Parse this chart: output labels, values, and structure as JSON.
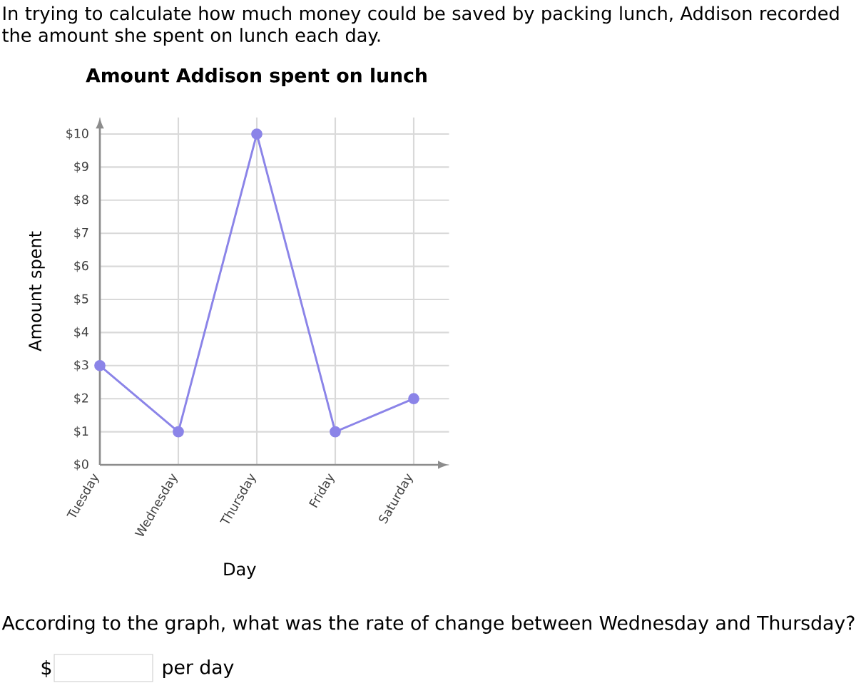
{
  "chart_data": {
    "type": "line",
    "title": "Amount Addison spent on lunch",
    "xlabel": "Day",
    "ylabel": "Amount spent",
    "categories": [
      "Tuesday",
      "Wednesday",
      "Thursday",
      "Friday",
      "Saturday"
    ],
    "values": [
      3,
      1,
      10,
      1,
      2
    ],
    "color": "#8b84e8",
    "marker": "circle",
    "grid": true,
    "ylim": [
      0,
      10.5
    ],
    "yticks": [
      {
        "value": 0,
        "label": "$0"
      },
      {
        "value": 1,
        "label": "$1"
      },
      {
        "value": 2,
        "label": "$2"
      },
      {
        "value": 3,
        "label": "$3"
      },
      {
        "value": 4,
        "label": "$4"
      },
      {
        "value": 5,
        "label": "$5"
      },
      {
        "value": 6,
        "label": "$6"
      },
      {
        "value": 7,
        "label": "$7"
      },
      {
        "value": 8,
        "label": "$8"
      },
      {
        "value": 9,
        "label": "$9"
      },
      {
        "value": 10,
        "label": "$10"
      }
    ],
    "annotations": [
      "In trying to calculate how much money could be saved by packing lunch, Addison recorded the amount she spent on lunch each day.",
      "According to the graph, what was the rate of change between Wednesday and Thursday?",
      "$",
      "per day"
    ]
  }
}
